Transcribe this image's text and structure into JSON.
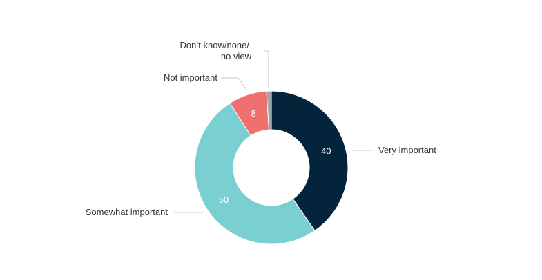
{
  "chart_data": {
    "type": "pie",
    "donut": true,
    "title": "",
    "categories": [
      "Very important",
      "Somewhat important",
      "Not important",
      "Don’t know/none/ no view"
    ],
    "values": [
      40,
      50,
      8,
      1
    ],
    "value_labels": [
      "40",
      "50",
      "8",
      ""
    ],
    "colors": [
      "#03243b",
      "#79cfd2",
      "#f06f6f",
      "#9aa7ad"
    ],
    "legend": "none"
  }
}
